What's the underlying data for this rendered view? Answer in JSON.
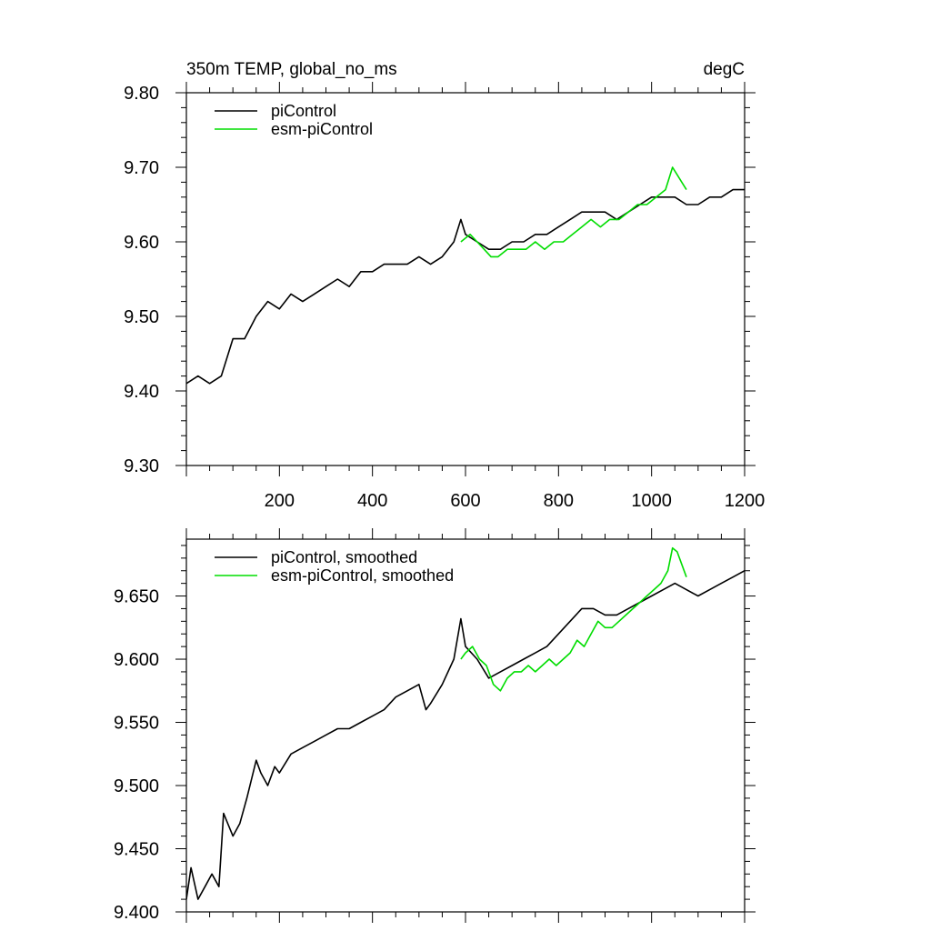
{
  "chart_data": [
    {
      "type": "line",
      "title": "350m TEMP, global_no_ms",
      "units": "degC",
      "xlabel": "",
      "ylabel": "",
      "xlim": [
        0,
        1200
      ],
      "ylim": [
        9.3,
        9.8
      ],
      "xticks": [
        200,
        400,
        600,
        800,
        1000,
        1200
      ],
      "xtick_labels": [
        "200",
        "400",
        "600",
        "800",
        "1000",
        "1200"
      ],
      "yticks": [
        9.3,
        9.4,
        9.5,
        9.6,
        9.7,
        9.8
      ],
      "ytick_labels": [
        "9.30",
        "9.40",
        "9.50",
        "9.60",
        "9.70",
        "9.80"
      ],
      "legend_position": "top-left",
      "series": [
        {
          "name": "piControl",
          "color": "#000000",
          "x": [
            0,
            25,
            50,
            75,
            100,
            125,
            150,
            175,
            200,
            225,
            250,
            275,
            300,
            325,
            350,
            375,
            400,
            425,
            450,
            475,
            500,
            525,
            550,
            575,
            590,
            600,
            625,
            650,
            675,
            700,
            725,
            750,
            775,
            800,
            825,
            850,
            875,
            900,
            925,
            950,
            975,
            1000,
            1025,
            1050,
            1075,
            1100,
            1125,
            1150,
            1175,
            1200
          ],
          "values": [
            9.41,
            9.42,
            9.41,
            9.42,
            9.47,
            9.47,
            9.5,
            9.52,
            9.51,
            9.53,
            9.52,
            9.53,
            9.54,
            9.55,
            9.54,
            9.56,
            9.56,
            9.57,
            9.57,
            9.57,
            9.58,
            9.57,
            9.58,
            9.6,
            9.63,
            9.61,
            9.6,
            9.59,
            9.59,
            9.6,
            9.6,
            9.61,
            9.61,
            9.62,
            9.63,
            9.64,
            9.64,
            9.64,
            9.63,
            9.64,
            9.65,
            9.66,
            9.66,
            9.66,
            9.65,
            9.65,
            9.66,
            9.66,
            9.67,
            9.67
          ]
        },
        {
          "name": "esm-piControl",
          "color": "#00dd00",
          "x": [
            590,
            610,
            625,
            640,
            655,
            670,
            690,
            710,
            730,
            750,
            770,
            790,
            810,
            830,
            850,
            870,
            890,
            910,
            930,
            950,
            970,
            990,
            1010,
            1030,
            1045,
            1055,
            1065,
            1075
          ],
          "values": [
            9.6,
            9.61,
            9.6,
            9.59,
            9.58,
            9.58,
            9.59,
            9.59,
            9.59,
            9.6,
            9.59,
            9.6,
            9.6,
            9.61,
            9.62,
            9.63,
            9.62,
            9.63,
            9.63,
            9.64,
            9.65,
            9.65,
            9.66,
            9.67,
            9.7,
            9.69,
            9.68,
            9.67
          ]
        }
      ]
    },
    {
      "type": "line",
      "title": "",
      "xlabel": "",
      "ylabel": "",
      "xlim": [
        0,
        1200
      ],
      "ylim": [
        9.4,
        9.695
      ],
      "xticks": [
        200,
        400,
        600,
        800,
        1000,
        1200
      ],
      "yticks": [
        9.4,
        9.45,
        9.5,
        9.55,
        9.6,
        9.65
      ],
      "ytick_labels": [
        "9.400",
        "9.450",
        "9.500",
        "9.550",
        "9.600",
        "9.650"
      ],
      "legend_position": "top-left",
      "series": [
        {
          "name": "piControl, smoothed",
          "color": "#000000",
          "x": [
            0,
            10,
            25,
            40,
            55,
            70,
            80,
            100,
            115,
            130,
            150,
            160,
            175,
            190,
            200,
            225,
            250,
            275,
            300,
            325,
            350,
            375,
            400,
            425,
            450,
            475,
            500,
            515,
            525,
            550,
            575,
            590,
            600,
            625,
            650,
            675,
            700,
            725,
            750,
            775,
            800,
            825,
            850,
            875,
            900,
            925,
            950,
            975,
            1000,
            1025,
            1050,
            1075,
            1100,
            1125,
            1150,
            1175,
            1200
          ],
          "values": [
            9.41,
            9.435,
            9.41,
            9.42,
            9.43,
            9.42,
            9.478,
            9.46,
            9.47,
            9.49,
            9.52,
            9.51,
            9.5,
            9.515,
            9.51,
            9.525,
            9.53,
            9.535,
            9.54,
            9.545,
            9.545,
            9.55,
            9.555,
            9.56,
            9.57,
            9.575,
            9.58,
            9.56,
            9.565,
            9.58,
            9.6,
            9.632,
            9.61,
            9.6,
            9.585,
            9.59,
            9.595,
            9.6,
            9.605,
            9.61,
            9.62,
            9.63,
            9.64,
            9.64,
            9.635,
            9.635,
            9.64,
            9.645,
            9.65,
            9.655,
            9.66,
            9.655,
            9.65,
            9.655,
            9.66,
            9.665,
            9.67
          ]
        },
        {
          "name": "esm-piControl, smoothed",
          "color": "#00dd00",
          "x": [
            590,
            600,
            615,
            630,
            645,
            660,
            675,
            690,
            705,
            720,
            735,
            750,
            765,
            780,
            795,
            810,
            825,
            840,
            855,
            870,
            885,
            900,
            915,
            930,
            945,
            960,
            975,
            990,
            1005,
            1020,
            1035,
            1045,
            1055,
            1065,
            1075
          ],
          "values": [
            9.6,
            9.605,
            9.61,
            9.6,
            9.595,
            9.58,
            9.575,
            9.585,
            9.59,
            9.59,
            9.595,
            9.59,
            9.595,
            9.6,
            9.595,
            9.6,
            9.605,
            9.615,
            9.61,
            9.62,
            9.63,
            9.625,
            9.625,
            9.63,
            9.635,
            9.64,
            9.645,
            9.65,
            9.655,
            9.66,
            9.67,
            9.688,
            9.685,
            9.675,
            9.665
          ]
        }
      ]
    }
  ]
}
